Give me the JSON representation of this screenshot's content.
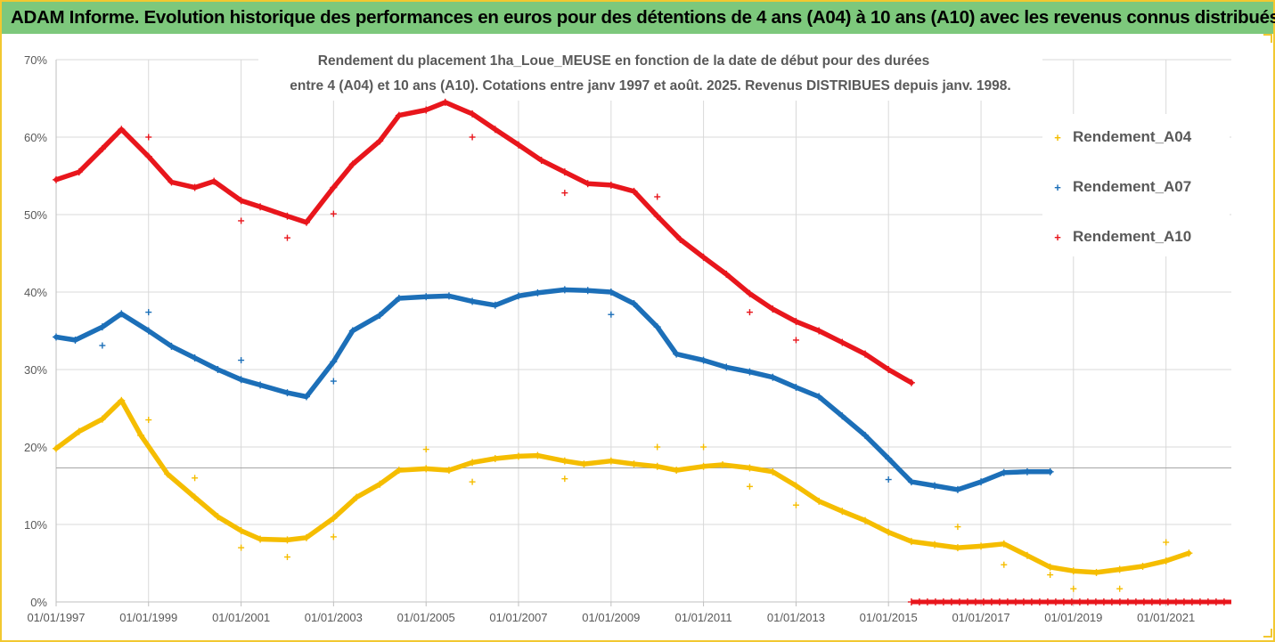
{
  "banner": {
    "title": "ADAM Informe. Evolution historique des performances en euros pour des détentions de 4 ans (A04) à 10 ans (A10) avec les revenus connus distribués"
  },
  "colors": {
    "banner_bg": "#7dc87c",
    "frame": "#f2c830",
    "A04": "#f5bd00",
    "A07": "#1c6fb8",
    "A10": "#e8161c",
    "grid": "#d9d9d9",
    "ref_line": "#a6a6a6"
  },
  "chart_data": {
    "type": "scatter",
    "title_line1": "Rendement du placement 1ha_Loue_MEUSE en fonction de la date de début pour des durées",
    "title_line2": "entre 4 (A04) et 10 ans (A10). Cotations entre janv 1997 et août. 2025. Revenus DISTRIBUES depuis janv. 1998.",
    "xlabel": "",
    "ylabel": "",
    "x_range": [
      "1997-01-01",
      "2022-06-01"
    ],
    "ylim": [
      0,
      70
    ],
    "y_ticks": [
      "0%",
      "10%",
      "20%",
      "30%",
      "40%",
      "50%",
      "60%",
      "70%"
    ],
    "x_ticks": [
      "01/01/1997",
      "01/01/1999",
      "01/01/2001",
      "01/01/2003",
      "01/01/2005",
      "01/01/2007",
      "01/01/2009",
      "01/01/2011",
      "01/01/2013",
      "01/01/2015",
      "01/01/2017",
      "01/01/2019",
      "01/01/2021"
    ],
    "grid": true,
    "legend_position": "right",
    "reference_line_y": 17.3,
    "series": [
      {
        "name": "Rendement_A04",
        "color_key": "A04",
        "trend": [
          [
            "1997-01-01",
            19.8
          ],
          [
            "1997-07-01",
            22.0
          ],
          [
            "1998-01-01",
            23.6
          ],
          [
            "1998-06-01",
            26.0
          ],
          [
            "1998-11-01",
            21.5
          ],
          [
            "1999-06-01",
            16.5
          ],
          [
            "2000-01-01",
            13.5
          ],
          [
            "2000-07-01",
            11.0
          ],
          [
            "2001-01-01",
            9.2
          ],
          [
            "2001-06-01",
            8.1
          ],
          [
            "2002-01-01",
            8.0
          ],
          [
            "2002-06-01",
            8.3
          ],
          [
            "2003-01-01",
            10.8
          ],
          [
            "2003-07-01",
            13.5
          ],
          [
            "2004-01-01",
            15.2
          ],
          [
            "2004-06-01",
            17.0
          ],
          [
            "2005-01-01",
            17.2
          ],
          [
            "2005-07-01",
            17.0
          ],
          [
            "2006-01-01",
            18.0
          ],
          [
            "2006-07-01",
            18.5
          ],
          [
            "2007-01-01",
            18.8
          ],
          [
            "2007-06-01",
            18.9
          ],
          [
            "2008-01-01",
            18.2
          ],
          [
            "2008-06-01",
            17.8
          ],
          [
            "2009-01-01",
            18.2
          ],
          [
            "2009-07-01",
            17.8
          ],
          [
            "2010-01-01",
            17.5
          ],
          [
            "2010-06-01",
            17.0
          ],
          [
            "2011-01-01",
            17.5
          ],
          [
            "2011-06-01",
            17.7
          ],
          [
            "2012-01-01",
            17.3
          ],
          [
            "2012-07-01",
            16.8
          ],
          [
            "2013-01-01",
            15.0
          ],
          [
            "2013-07-01",
            13.0
          ],
          [
            "2014-01-01",
            11.7
          ],
          [
            "2014-07-01",
            10.5
          ],
          [
            "2015-01-01",
            9.0
          ],
          [
            "2015-07-01",
            7.8
          ],
          [
            "2016-01-01",
            7.4
          ],
          [
            "2016-07-01",
            7.0
          ],
          [
            "2017-01-01",
            7.2
          ],
          [
            "2017-07-01",
            7.5
          ],
          [
            "2018-01-01",
            6.0
          ],
          [
            "2018-07-01",
            4.5
          ],
          [
            "2019-01-01",
            4.0
          ],
          [
            "2019-07-01",
            3.8
          ],
          [
            "2020-01-01",
            4.2
          ],
          [
            "2020-07-01",
            4.6
          ],
          [
            "2021-01-01",
            5.3
          ],
          [
            "2021-07-01",
            6.3
          ]
        ],
        "outliers": [
          [
            "1999-01-01",
            23.5
          ],
          [
            "2000-01-01",
            16.0
          ],
          [
            "2001-01-01",
            7.0
          ],
          [
            "2002-01-01",
            5.8
          ],
          [
            "2003-01-01",
            8.4
          ],
          [
            "2005-01-01",
            19.7
          ],
          [
            "2006-01-01",
            15.5
          ],
          [
            "2008-01-01",
            15.9
          ],
          [
            "2010-01-01",
            20.0
          ],
          [
            "2011-01-01",
            20.0
          ],
          [
            "2012-01-01",
            14.9
          ],
          [
            "2013-01-01",
            12.5
          ],
          [
            "2016-07-01",
            9.7
          ],
          [
            "2017-07-01",
            4.8
          ],
          [
            "2018-07-01",
            3.5
          ],
          [
            "2019-01-01",
            1.7
          ],
          [
            "2020-01-01",
            1.7
          ],
          [
            "2021-01-01",
            7.7
          ]
        ]
      },
      {
        "name": "Rendement_A07",
        "color_key": "A07",
        "trend": [
          [
            "1997-01-01",
            34.2
          ],
          [
            "1997-06-01",
            33.8
          ],
          [
            "1998-01-01",
            35.5
          ],
          [
            "1998-06-01",
            37.2
          ],
          [
            "1999-01-01",
            35.0
          ],
          [
            "1999-07-01",
            33.0
          ],
          [
            "2000-01-01",
            31.5
          ],
          [
            "2000-07-01",
            30.0
          ],
          [
            "2001-01-01",
            28.7
          ],
          [
            "2001-06-01",
            28.0
          ],
          [
            "2002-01-01",
            27.0
          ],
          [
            "2002-06-01",
            26.5
          ],
          [
            "2003-01-01",
            31.0
          ],
          [
            "2003-06-01",
            35.0
          ],
          [
            "2004-01-01",
            37.0
          ],
          [
            "2004-06-01",
            39.2
          ],
          [
            "2005-01-01",
            39.4
          ],
          [
            "2005-07-01",
            39.5
          ],
          [
            "2006-01-01",
            38.8
          ],
          [
            "2006-07-01",
            38.3
          ],
          [
            "2007-01-01",
            39.5
          ],
          [
            "2007-06-01",
            39.9
          ],
          [
            "2008-01-01",
            40.3
          ],
          [
            "2008-07-01",
            40.2
          ],
          [
            "2009-01-01",
            40.0
          ],
          [
            "2009-07-01",
            38.5
          ],
          [
            "2010-01-01",
            35.5
          ],
          [
            "2010-06-01",
            32.0
          ],
          [
            "2011-01-01",
            31.2
          ],
          [
            "2011-07-01",
            30.3
          ],
          [
            "2012-01-01",
            29.7
          ],
          [
            "2012-07-01",
            29.0
          ],
          [
            "2013-01-01",
            27.7
          ],
          [
            "2013-07-01",
            26.5
          ],
          [
            "2014-01-01",
            24.0
          ],
          [
            "2014-07-01",
            21.5
          ],
          [
            "2015-01-01",
            18.5
          ],
          [
            "2015-07-01",
            15.5
          ],
          [
            "2016-01-01",
            15.0
          ],
          [
            "2016-07-01",
            14.5
          ],
          [
            "2017-01-01",
            15.5
          ],
          [
            "2017-07-01",
            16.7
          ],
          [
            "2018-01-01",
            16.8
          ],
          [
            "2018-07-01",
            16.8
          ]
        ],
        "outliers": [
          [
            "1998-01-01",
            33.1
          ],
          [
            "1999-01-01",
            37.4
          ],
          [
            "2001-01-01",
            31.2
          ],
          [
            "2003-01-01",
            28.5
          ],
          [
            "2009-01-01",
            37.1
          ],
          [
            "2015-01-01",
            15.8
          ]
        ]
      },
      {
        "name": "Rendement_A10",
        "color_key": "A10",
        "trend": [
          [
            "1997-01-01",
            54.5
          ],
          [
            "1997-07-01",
            55.5
          ],
          [
            "1998-01-01",
            58.5
          ],
          [
            "1998-06-01",
            61.0
          ],
          [
            "1999-01-01",
            57.5
          ],
          [
            "1999-07-01",
            54.2
          ],
          [
            "2000-01-01",
            53.5
          ],
          [
            "2000-06-01",
            54.3
          ],
          [
            "2001-01-01",
            51.8
          ],
          [
            "2001-06-01",
            51.0
          ],
          [
            "2002-01-01",
            49.8
          ],
          [
            "2002-06-01",
            49.0
          ],
          [
            "2003-01-01",
            53.5
          ],
          [
            "2003-06-01",
            56.5
          ],
          [
            "2004-01-01",
            59.5
          ],
          [
            "2004-06-01",
            62.8
          ],
          [
            "2005-01-01",
            63.5
          ],
          [
            "2005-06-01",
            64.5
          ],
          [
            "2006-01-01",
            63.0
          ],
          [
            "2006-07-01",
            61.0
          ],
          [
            "2007-01-01",
            59.0
          ],
          [
            "2007-07-01",
            57.0
          ],
          [
            "2008-01-01",
            55.5
          ],
          [
            "2008-07-01",
            54.0
          ],
          [
            "2009-01-01",
            53.8
          ],
          [
            "2009-07-01",
            53.0
          ],
          [
            "2010-01-01",
            49.8
          ],
          [
            "2010-07-01",
            46.8
          ],
          [
            "2011-01-01",
            44.5
          ],
          [
            "2011-07-01",
            42.3
          ],
          [
            "2012-01-01",
            39.8
          ],
          [
            "2012-07-01",
            37.8
          ],
          [
            "2013-01-01",
            36.2
          ],
          [
            "2013-07-01",
            35.0
          ],
          [
            "2014-01-01",
            33.5
          ],
          [
            "2014-07-01",
            32.0
          ],
          [
            "2015-01-01",
            30.0
          ],
          [
            "2015-07-01",
            28.3
          ]
        ],
        "outliers": [
          [
            "1999-01-01",
            60.0
          ],
          [
            "2001-01-01",
            49.2
          ],
          [
            "2002-01-01",
            47.0
          ],
          [
            "2003-01-01",
            50.1
          ],
          [
            "2006-01-01",
            60.0
          ],
          [
            "2008-01-01",
            52.8
          ],
          [
            "2010-01-01",
            52.3
          ],
          [
            "2012-01-01",
            37.4
          ],
          [
            "2013-01-01",
            33.8
          ]
        ],
        "zero_run": [
          [
            "2015-07-01",
            0.0
          ],
          [
            "2022-06-01",
            0.0
          ]
        ]
      }
    ]
  }
}
